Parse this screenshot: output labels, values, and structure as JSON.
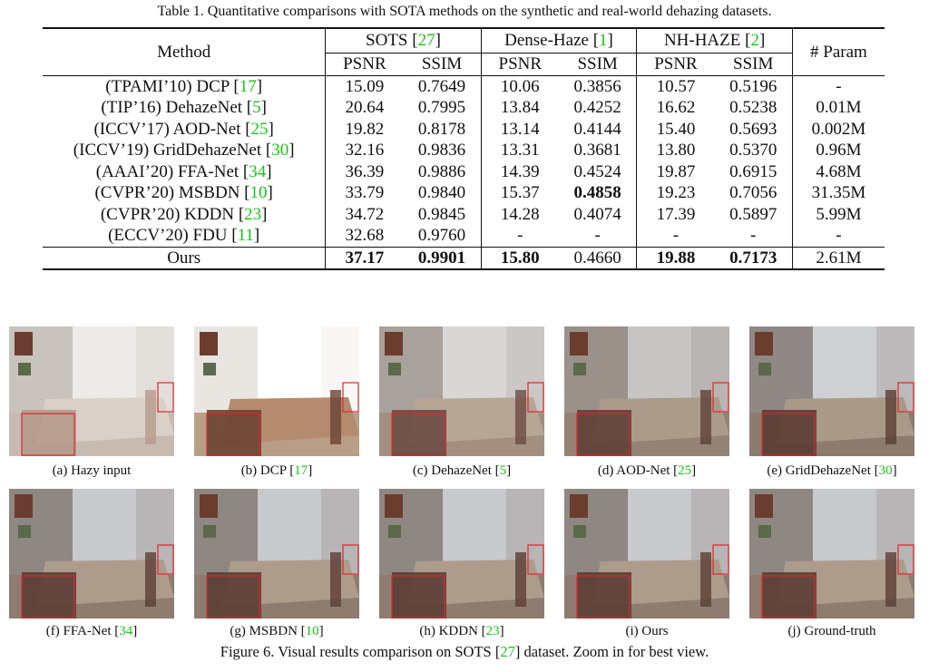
{
  "table": {
    "caption": "Table 1. Quantitative comparisons with SOTA methods on the synthetic and real-world dehazing datasets.",
    "header": {
      "method": "Method",
      "datasets": [
        {
          "name": "SOTS [",
          "ref": "27",
          "close": "]"
        },
        {
          "name": "Dense-Haze [",
          "ref": "1",
          "close": "]"
        },
        {
          "name": "NH-HAZE [",
          "ref": "2",
          "close": "]"
        }
      ],
      "psnr": "PSNR",
      "ssim": "SSIM",
      "param": "# Param"
    },
    "rows": [
      {
        "method": "(TPAMI’10) DCP [",
        "ref": "17",
        "close": "]",
        "values": [
          "15.09",
          "0.7649",
          "10.06",
          "0.3856",
          "10.57",
          "0.5196",
          "-"
        ]
      },
      {
        "method": "(TIP’16) DehazeNet [",
        "ref": "5",
        "close": "]",
        "values": [
          "20.64",
          "0.7995",
          "13.84",
          "0.4252",
          "16.62",
          "0.5238",
          "0.01M"
        ]
      },
      {
        "method": "(ICCV’17) AOD-Net [",
        "ref": "25",
        "close": "]",
        "values": [
          "19.82",
          "0.8178",
          "13.14",
          "0.4144",
          "15.40",
          "0.5693",
          "0.002M"
        ]
      },
      {
        "method": "(ICCV’19) GridDehazeNet [",
        "ref": "30",
        "close": "]",
        "values": [
          "32.16",
          "0.9836",
          "13.31",
          "0.3681",
          "13.80",
          "0.5370",
          "0.96M"
        ]
      },
      {
        "method": "(AAAI’20) FFA-Net [",
        "ref": "34",
        "close": "]",
        "values": [
          "36.39",
          "0.9886",
          "14.39",
          "0.4524",
          "19.87",
          "0.6915",
          "4.68M"
        ]
      },
      {
        "method": "(CVPR’20) MSBDN [",
        "ref": "10",
        "close": "]",
        "values": [
          "33.79",
          "0.9840",
          "15.37",
          "0.4858",
          "19.23",
          "0.7056",
          "31.35M"
        ]
      },
      {
        "method": "(CVPR’20) KDDN [",
        "ref": "23",
        "close": "]",
        "values": [
          "34.72",
          "0.9845",
          "14.28",
          "0.4074",
          "17.39",
          "0.5897",
          "5.99M"
        ]
      },
      {
        "method": "(ECCV’20) FDU [",
        "ref": "11",
        "close": "]",
        "values": [
          "32.68",
          "0.9760",
          "-",
          "-",
          "-",
          "-",
          "-"
        ]
      },
      {
        "method": "Ours",
        "ref": "",
        "close": "",
        "values": [
          "37.17",
          "0.9901",
          "15.80",
          "0.4660",
          "19.88",
          "0.7173",
          "2.61M"
        ]
      }
    ]
  },
  "figure": {
    "caption_prefix": "Figure 6. Visual results comparison on SOTS [",
    "caption_ref": "27",
    "caption_suffix": "] dataset. Zoom in for best view.",
    "panels": [
      {
        "label": "(a)  Hazy input",
        "ref": "",
        "close": "",
        "style": "hazy"
      },
      {
        "label": "(b)  DCP [",
        "ref": "17",
        "close": "]",
        "style": "dcp"
      },
      {
        "label": "(c)  DehazeNet [",
        "ref": "5",
        "close": "]",
        "style": "dehazenet"
      },
      {
        "label": "(d)  AOD-Net [",
        "ref": "25",
        "close": "]",
        "style": "aod"
      },
      {
        "label": "(e)  GridDehazeNet [",
        "ref": "30",
        "close": "]",
        "style": "grid"
      },
      {
        "label": "(f)  FFA-Net [",
        "ref": "34",
        "close": "]",
        "style": "clear"
      },
      {
        "label": "(g)  MSBDN [",
        "ref": "10",
        "close": "]",
        "style": "clear"
      },
      {
        "label": "(h)  KDDN [",
        "ref": "23",
        "close": "]",
        "style": "clear"
      },
      {
        "label": "(i)  Ours",
        "ref": "",
        "close": "",
        "style": "clear"
      },
      {
        "label": "(j)  Ground-truth",
        "ref": "",
        "close": "",
        "style": "clear"
      }
    ]
  }
}
